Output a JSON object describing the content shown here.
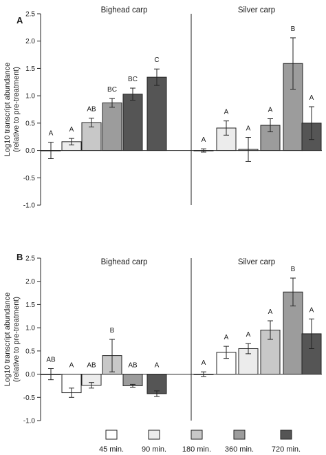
{
  "chart_data": [
    {
      "type": "bar",
      "panel": "A",
      "ylabel": [
        "Log10 transcript abundance",
        "(relative to pre-treatment)"
      ],
      "ylim": [
        -1.0,
        2.5
      ],
      "yticks": [
        -1.0,
        -0.5,
        0.0,
        0.5,
        1.0,
        1.5,
        2.0,
        2.5
      ],
      "ytick_labels": [
        "-1.0",
        "-0.5",
        "0.0",
        "0.5",
        "1.0",
        "1.5",
        "2.0",
        "2.5"
      ],
      "groups": [
        {
          "name": "Bighead carp",
          "bars": [
            {
              "series": "45 min.",
              "value": 0.0,
              "err": 0.15,
              "label": "A"
            },
            {
              "series": "90 min.",
              "value": 0.16,
              "err": 0.06,
              "label": "A"
            },
            {
              "series": "180 min.",
              "value": 0.51,
              "err": 0.08,
              "label": "AB"
            },
            {
              "series": "360 min.",
              "value": 0.87,
              "err": 0.08,
              "label": "BC"
            },
            {
              "series": "720 min.",
              "value": 1.03,
              "err": 0.11,
              "label": "BC"
            },
            {
              "series": "720 min.",
              "value": 1.34,
              "err": 0.15,
              "label": "C"
            }
          ]
        },
        {
          "name": "Silver carp",
          "bars": [
            {
              "series": "45 min.",
              "value": 0.0,
              "err": 0.03,
              "label": "A"
            },
            {
              "series": "90 min.",
              "value": 0.41,
              "err": 0.13,
              "label": "A"
            },
            {
              "series": "180 min.",
              "value": 0.02,
              "err": 0.22,
              "label": "A"
            },
            {
              "series": "360 min.",
              "value": 0.46,
              "err": 0.12,
              "label": "A"
            },
            {
              "series": "360 min.",
              "value": 1.59,
              "err": 0.47,
              "label": "B"
            },
            {
              "series": "720 min.",
              "value": 0.5,
              "err": 0.3,
              "label": "A"
            }
          ]
        }
      ]
    },
    {
      "type": "bar",
      "panel": "B",
      "ylabel": [
        "Log10 transcript abundance",
        "(relative to pre-treatment)"
      ],
      "ylim": [
        -1.0,
        2.5
      ],
      "yticks": [
        -1.0,
        -0.5,
        0.0,
        0.5,
        1.0,
        1.5,
        2.0,
        2.5
      ],
      "ytick_labels": [
        "-1.0",
        "-0.5",
        "0.0",
        "0.5",
        "1.0",
        "1.5",
        "2.0",
        "2.5"
      ],
      "groups": [
        {
          "name": "Bighead carp",
          "bars": [
            {
              "series": "45 min.",
              "value": 0.0,
              "err": 0.12,
              "label": "AB"
            },
            {
              "series": "45 min.",
              "value": -0.4,
              "err": 0.1,
              "label": "A"
            },
            {
              "series": "90 min.",
              "value": -0.24,
              "err": 0.06,
              "label": "AB"
            },
            {
              "series": "180 min.",
              "value": 0.4,
              "err": 0.35,
              "label": "B"
            },
            {
              "series": "360 min.",
              "value": -0.25,
              "err": 0.03,
              "label": "AB"
            },
            {
              "series": "720 min.",
              "value": -0.42,
              "err": 0.06,
              "label": "A"
            }
          ]
        },
        {
          "name": "Silver carp",
          "bars": [
            {
              "series": "45 min.",
              "value": 0.0,
              "err": 0.05,
              "label": "A"
            },
            {
              "series": "45 min.",
              "value": 0.47,
              "err": 0.13,
              "label": "A"
            },
            {
              "series": "90 min.",
              "value": 0.55,
              "err": 0.11,
              "label": "A"
            },
            {
              "series": "180 min.",
              "value": 0.95,
              "err": 0.2,
              "label": "A"
            },
            {
              "series": "360 min.",
              "value": 1.77,
              "err": 0.3,
              "label": "B"
            },
            {
              "series": "720 min.",
              "value": 0.87,
              "err": 0.32,
              "label": "A"
            }
          ]
        }
      ]
    }
  ],
  "legend": {
    "placement": "bottom",
    "entries": [
      {
        "label": "45 min.",
        "color": "#ffffff"
      },
      {
        "label": "90 min.",
        "color": "#ececec"
      },
      {
        "label": "180 min.",
        "color": "#c8c8c8"
      },
      {
        "label": "360 min.",
        "color": "#9c9c9c"
      },
      {
        "label": "720 min.",
        "color": "#555555"
      }
    ]
  }
}
